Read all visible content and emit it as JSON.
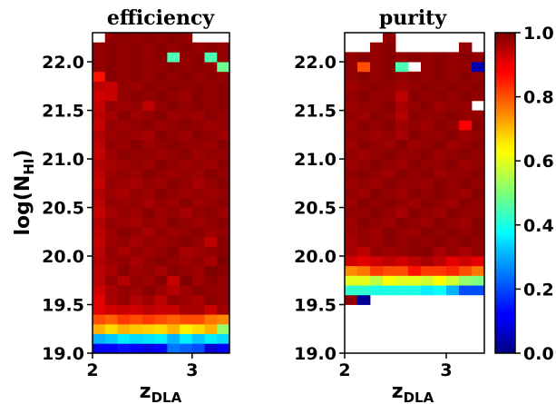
{
  "chart_data": [
    {
      "type": "heatmap",
      "title": "efficiency",
      "xlabel": "z",
      "xlabel_sub": "DLA",
      "ylabel": "log(N",
      "ylabel_sub": "HI",
      "ylabel_close": ")",
      "x_bins": [
        2.0,
        2.125,
        2.25,
        2.375,
        2.5,
        2.625,
        2.75,
        2.875,
        3.0,
        3.125,
        3.25,
        3.375
      ],
      "y_bins": [
        19.0,
        19.1,
        19.2,
        19.3,
        19.4,
        19.5,
        19.6,
        19.7,
        19.8,
        19.9,
        20.0,
        20.1,
        20.2,
        20.3,
        20.4,
        20.5,
        20.6,
        20.7,
        20.8,
        20.9,
        21.0,
        21.1,
        21.2,
        21.3,
        21.4,
        21.5,
        21.6,
        21.7,
        21.8,
        21.9,
        22.0,
        22.1,
        22.2,
        22.3
      ],
      "xlim": [
        2.0,
        3.375
      ],
      "ylim": [
        19.0,
        22.3
      ],
      "x_ticks": [
        "2",
        "3"
      ],
      "x_tick_values": [
        2,
        3
      ],
      "y_ticks": [
        "19.0",
        "19.5",
        "20.0",
        "20.5",
        "21.0",
        "21.5",
        "22.0"
      ],
      "y_tick_values": [
        19.0,
        19.5,
        20.0,
        20.5,
        21.0,
        21.5,
        22.0
      ],
      "values": [
        [
          0.12,
          0.12,
          0.14,
          0.12,
          0.1,
          0.12,
          0.24,
          0.22,
          0.2,
          0.08,
          0.12
        ],
        [
          0.3,
          0.32,
          0.36,
          0.34,
          0.35,
          0.36,
          0.3,
          0.36,
          0.32,
          0.36,
          0.34
        ],
        [
          0.7,
          0.66,
          0.7,
          0.68,
          0.67,
          0.66,
          0.7,
          0.64,
          0.66,
          0.7,
          0.52
        ],
        [
          0.8,
          0.78,
          0.82,
          0.8,
          0.82,
          0.8,
          0.78,
          0.8,
          0.8,
          0.76,
          0.74
        ],
        [
          0.9,
          0.92,
          0.93,
          0.92,
          0.94,
          0.93,
          0.93,
          0.96,
          0.96,
          0.93,
          0.97
        ],
        [
          0.9,
          0.96,
          0.98,
          0.95,
          0.97,
          0.94,
          0.98,
          0.97,
          0.96,
          0.99,
          0.98
        ],
        [
          0.92,
          0.96,
          0.98,
          0.97,
          0.99,
          0.97,
          0.95,
          0.97,
          0.99,
          0.98,
          0.98
        ],
        [
          0.94,
          0.98,
          0.95,
          0.98,
          0.97,
          0.99,
          0.93,
          1.0,
          0.97,
          0.99,
          0.98
        ],
        [
          0.94,
          0.96,
          0.99,
          0.97,
          0.98,
          0.96,
          0.99,
          0.98,
          0.97,
          1.0,
          0.99
        ],
        [
          0.95,
          0.97,
          0.98,
          0.96,
          0.98,
          0.99,
          0.98,
          0.97,
          0.98,
          0.96,
          1.0
        ],
        [
          0.94,
          0.98,
          0.96,
          0.98,
          0.97,
          0.98,
          0.99,
          0.96,
          0.97,
          0.98,
          0.99
        ],
        [
          0.93,
          0.97,
          0.98,
          0.96,
          0.98,
          0.97,
          0.98,
          0.99,
          0.98,
          0.94,
          0.99
        ],
        [
          0.94,
          0.97,
          0.99,
          0.98,
          0.96,
          0.98,
          0.97,
          0.98,
          0.99,
          0.97,
          0.98
        ],
        [
          0.95,
          0.98,
          0.97,
          0.96,
          0.98,
          0.97,
          0.99,
          0.98,
          0.97,
          0.98,
          0.99
        ],
        [
          0.93,
          0.96,
          0.98,
          0.97,
          0.99,
          0.97,
          0.98,
          0.96,
          0.98,
          0.99,
          0.97
        ],
        [
          0.94,
          0.98,
          0.97,
          0.98,
          0.96,
          0.98,
          0.97,
          0.99,
          0.97,
          0.98,
          0.99
        ],
        [
          0.95,
          0.97,
          0.96,
          0.98,
          0.97,
          0.99,
          0.98,
          0.97,
          0.98,
          0.97,
          0.98
        ],
        [
          0.93,
          0.98,
          0.97,
          0.96,
          0.98,
          0.97,
          0.99,
          0.98,
          0.96,
          0.98,
          0.99
        ],
        [
          0.94,
          0.97,
          0.98,
          0.97,
          0.99,
          0.98,
          0.97,
          0.98,
          0.97,
          0.99,
          0.98
        ],
        [
          0.95,
          0.96,
          0.97,
          0.98,
          0.97,
          0.99,
          0.98,
          0.97,
          0.98,
          0.97,
          0.99
        ],
        [
          0.93,
          0.97,
          0.99,
          0.98,
          0.98,
          0.97,
          0.98,
          0.99,
          0.97,
          0.98,
          0.98
        ],
        [
          0.94,
          0.98,
          0.97,
          0.99,
          0.97,
          0.98,
          0.99,
          0.98,
          0.98,
          0.97,
          0.99
        ],
        [
          0.95,
          0.97,
          0.98,
          0.97,
          0.96,
          0.99,
          0.98,
          0.97,
          0.99,
          0.98,
          0.97
        ],
        [
          0.93,
          0.98,
          0.97,
          0.98,
          0.99,
          0.97,
          0.98,
          0.99,
          0.98,
          0.97,
          0.98
        ],
        [
          0.94,
          0.96,
          0.99,
          0.97,
          0.98,
          0.99,
          0.97,
          0.98,
          0.97,
          0.99,
          0.98
        ],
        [
          0.93,
          0.98,
          0.97,
          0.98,
          0.94,
          0.98,
          0.99,
          0.98,
          0.99,
          0.98,
          0.99
        ],
        [
          0.92,
          0.93,
          0.98,
          0.99,
          0.98,
          0.99,
          0.98,
          0.97,
          0.99,
          0.98,
          0.99
        ],
        [
          0.94,
          0.93,
          0.98,
          0.97,
          0.99,
          0.98,
          0.99,
          0.98,
          0.99,
          0.98,
          0.99
        ],
        [
          0.86,
          0.99,
          0.98,
          0.99,
          0.98,
          0.99,
          0.98,
          0.99,
          0.98,
          0.99,
          0.98
        ],
        [
          0.98,
          0.99,
          0.98,
          0.99,
          0.98,
          0.98,
          0.99,
          0.98,
          0.99,
          0.98,
          0.48
        ],
        [
          0.98,
          0.99,
          0.98,
          0.99,
          0.98,
          0.99,
          0.45,
          0.98,
          0.99,
          0.45,
          0.98
        ],
        [
          0.98,
          0.99,
          0.98,
          0.99,
          0.98,
          0.99,
          0.98,
          0.99,
          0.98,
          0.99,
          0.98
        ],
        [
          null,
          0.98,
          0.99,
          0.98,
          0.99,
          0.98,
          0.99,
          0.98,
          null,
          null,
          null
        ]
      ]
    },
    {
      "type": "heatmap",
      "title": "purity",
      "xlabel": "z",
      "xlabel_sub": "DLA",
      "x_bins": [
        2.0,
        2.125,
        2.25,
        2.375,
        2.5,
        2.625,
        2.75,
        2.875,
        3.0,
        3.125,
        3.25,
        3.375
      ],
      "y_bins": [
        19.0,
        19.1,
        19.2,
        19.3,
        19.4,
        19.5,
        19.6,
        19.7,
        19.8,
        19.9,
        20.0,
        20.1,
        20.2,
        20.3,
        20.4,
        20.5,
        20.6,
        20.7,
        20.8,
        20.9,
        21.0,
        21.1,
        21.2,
        21.3,
        21.4,
        21.5,
        21.6,
        21.7,
        21.8,
        21.9,
        22.0,
        22.1,
        22.2,
        22.3
      ],
      "xlim": [
        2.0,
        3.375
      ],
      "ylim": [
        19.0,
        22.3
      ],
      "x_ticks": [
        "2",
        "3"
      ],
      "x_tick_values": [
        2,
        3
      ],
      "y_ticks": [
        "19.0",
        "19.5",
        "20.0",
        "20.5",
        "21.0",
        "21.5",
        "22.0"
      ],
      "y_tick_values": [
        19.0,
        19.5,
        20.0,
        20.5,
        21.0,
        21.5,
        22.0
      ],
      "values": [
        [
          null,
          null,
          null,
          null,
          null,
          null,
          null,
          null,
          null,
          null,
          null
        ],
        [
          null,
          null,
          null,
          null,
          null,
          null,
          null,
          null,
          null,
          null,
          null
        ],
        [
          null,
          null,
          null,
          null,
          null,
          null,
          null,
          null,
          null,
          null,
          null
        ],
        [
          null,
          null,
          null,
          null,
          null,
          null,
          null,
          null,
          null,
          null,
          null
        ],
        [
          null,
          null,
          null,
          null,
          null,
          null,
          null,
          null,
          null,
          null,
          null
        ],
        [
          0.98,
          0.02,
          null,
          null,
          null,
          null,
          null,
          null,
          null,
          null,
          null
        ],
        [
          0.42,
          0.42,
          0.4,
          0.4,
          0.4,
          0.4,
          0.36,
          0.38,
          0.3,
          0.2,
          0.2
        ],
        [
          0.6,
          0.6,
          0.56,
          0.62,
          0.6,
          0.6,
          0.58,
          0.62,
          0.58,
          0.52,
          0.5
        ],
        [
          0.74,
          0.76,
          0.82,
          0.8,
          0.8,
          0.86,
          0.82,
          0.82,
          0.84,
          0.8,
          0.76
        ],
        [
          0.92,
          0.9,
          0.92,
          0.94,
          0.92,
          0.94,
          0.96,
          0.94,
          0.9,
          0.92,
          0.9
        ],
        [
          0.96,
          0.94,
          0.98,
          0.97,
          0.98,
          0.99,
          0.99,
          0.96,
          0.98,
          0.96,
          0.98
        ],
        [
          0.96,
          0.98,
          0.97,
          0.99,
          0.98,
          0.99,
          0.98,
          0.99,
          0.98,
          0.99,
          0.98
        ],
        [
          0.97,
          0.98,
          0.97,
          0.99,
          0.98,
          0.97,
          0.99,
          0.98,
          0.99,
          0.98,
          0.99
        ],
        [
          0.97,
          0.99,
          0.98,
          0.97,
          0.99,
          0.98,
          0.97,
          0.99,
          0.98,
          0.97,
          0.99
        ],
        [
          0.98,
          0.98,
          0.99,
          0.98,
          0.96,
          0.99,
          0.98,
          0.97,
          0.99,
          0.98,
          0.98
        ],
        [
          0.97,
          0.99,
          0.98,
          0.99,
          0.98,
          0.97,
          0.99,
          0.98,
          0.97,
          0.99,
          0.98
        ],
        [
          0.98,
          0.97,
          0.99,
          0.98,
          0.97,
          0.99,
          0.98,
          0.99,
          0.98,
          0.97,
          0.99
        ],
        [
          0.97,
          0.98,
          0.97,
          0.99,
          0.98,
          0.98,
          0.97,
          0.99,
          0.98,
          0.99,
          0.98
        ],
        [
          0.98,
          0.99,
          0.98,
          0.97,
          0.99,
          0.98,
          0.99,
          0.97,
          0.98,
          0.98,
          0.99
        ],
        [
          0.97,
          0.98,
          0.99,
          0.98,
          0.97,
          0.99,
          0.98,
          0.98,
          0.99,
          0.97,
          0.98
        ],
        [
          0.98,
          0.97,
          0.98,
          0.99,
          0.98,
          0.98,
          0.99,
          0.97,
          0.98,
          0.99,
          0.98
        ],
        [
          0.97,
          0.99,
          0.98,
          0.97,
          0.99,
          0.97,
          0.98,
          0.99,
          0.97,
          0.98,
          0.99
        ],
        [
          0.98,
          0.98,
          0.97,
          0.98,
          0.96,
          0.99,
          0.98,
          0.98,
          0.99,
          0.97,
          0.98
        ],
        [
          0.97,
          0.99,
          0.98,
          0.99,
          0.97,
          0.98,
          0.97,
          0.99,
          0.98,
          0.88,
          0.99
        ],
        [
          0.98,
          0.97,
          0.99,
          0.98,
          0.95,
          0.99,
          0.98,
          0.98,
          0.99,
          0.98,
          0.98
        ],
        [
          0.97,
          0.98,
          0.98,
          0.99,
          0.96,
          0.98,
          0.99,
          0.97,
          0.98,
          0.98,
          null
        ],
        [
          0.98,
          0.99,
          0.98,
          0.98,
          0.94,
          0.99,
          0.98,
          0.99,
          0.98,
          0.99,
          0.98
        ],
        [
          0.97,
          0.98,
          0.99,
          0.98,
          0.97,
          0.98,
          0.99,
          0.98,
          0.99,
          0.98,
          0.99
        ],
        [
          0.98,
          0.99,
          0.98,
          0.99,
          0.98,
          0.99,
          0.98,
          0.99,
          0.98,
          0.99,
          0.98
        ],
        [
          0.98,
          0.8,
          0.98,
          0.99,
          0.45,
          null,
          0.98,
          0.99,
          0.98,
          0.98,
          0.05
        ],
        [
          0.98,
          0.99,
          0.98,
          0.99,
          0.98,
          0.99,
          0.98,
          0.99,
          0.98,
          0.99,
          0.98
        ],
        [
          null,
          null,
          0.98,
          0.99,
          null,
          null,
          null,
          null,
          null,
          0.98,
          null
        ],
        [
          null,
          null,
          null,
          0.98,
          null,
          null,
          null,
          null,
          null,
          null,
          null
        ]
      ]
    }
  ],
  "colorbar": {
    "vmin": 0.0,
    "vmax": 1.0,
    "ticks": [
      "0.0",
      "0.2",
      "0.4",
      "0.6",
      "0.8",
      "1.0"
    ],
    "tick_values": [
      0.0,
      0.2,
      0.4,
      0.6,
      0.8,
      1.0
    ],
    "colormap": "jet"
  }
}
